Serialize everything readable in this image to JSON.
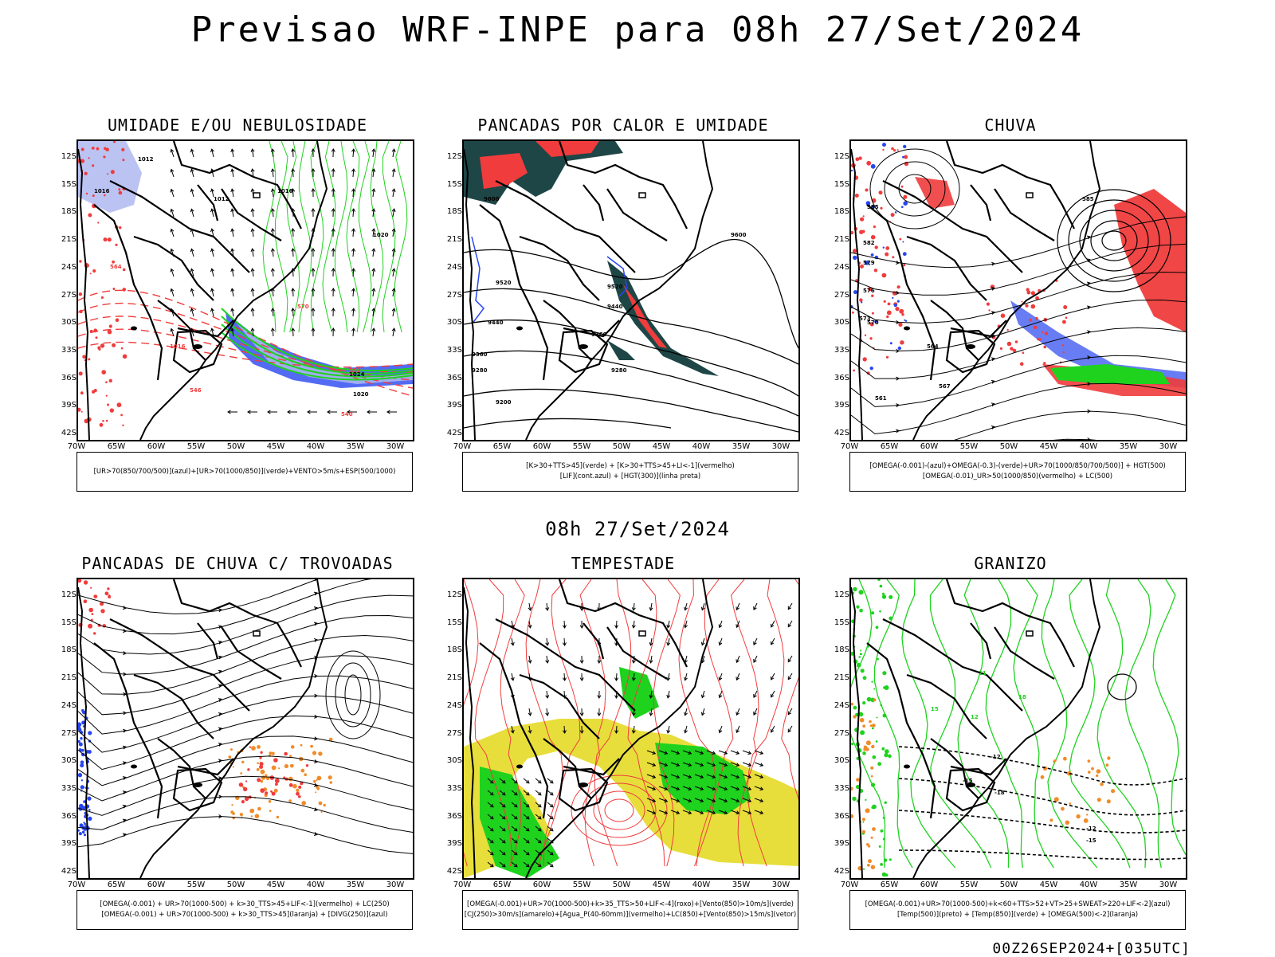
{
  "main_title": "Previsao WRF-INPE  para 08h 27/Set/2024",
  "mid_title": "08h 27/Set/2024",
  "footer": "00Z26SEP2024+[035UTC]",
  "lat_ticks": [
    "12S",
    "15S",
    "18S",
    "21S",
    "24S",
    "27S",
    "30S",
    "33S",
    "36S",
    "39S",
    "42S"
  ],
  "lon_ticks": [
    "70W",
    "65W",
    "60W",
    "55W",
    "50W",
    "45W",
    "40W",
    "35W",
    "30W"
  ],
  "panels": [
    {
      "title": "UMIDADE E/OU NEBULOSIDADE",
      "legend": [
        "[UR>70(850/700/500)](azul)+[UR>70(1000/850)](verde)+VENTO>5m/s+ESP(500/1000)"
      ]
    },
    {
      "title": "PANCADAS POR CALOR E UMIDADE",
      "legend": [
        "[K>30+TTS>45](verde) + [K>30+TTS>45+LI<-1](vermelho)",
        "[LIF](cont.azul) + [HGT(300)](linha preta)"
      ]
    },
    {
      "title": "CHUVA",
      "legend": [
        "[OMEGA(-0.001)-(azul)+OMEGA(-0.3)-(verde)+UR>70(1000/850/700/500)] + HGT(500)",
        "[OMEGA(-0.01)_UR>50(1000/850)(vermelho) + LC(500)"
      ]
    },
    {
      "title": "PANCADAS DE CHUVA C/ TROVOADAS",
      "legend": [
        "[OMEGA(-0.001) + UR>70(1000-500) + k>30_TTS>45+LIF<-1](vermelho) + LC(250)",
        "[OMEGA(-0.001) + UR>70(1000-500) + k>30_TTS>45](laranja) + [DIVG(250)](azul)"
      ]
    },
    {
      "title": "TEMPESTADE",
      "legend": [
        "[OMEGA(-0.001)+UR>70(1000-500)+k>35_TTS>50+LIF<-4](roxo)+[Vento(850)>10m/s](verde)",
        "[CJ(250)>30m/s](amarelo)+[Agua_P(40-60mm)](vermelho)+LC(850)+[Vento(850)>15m/s](vetor)"
      ]
    },
    {
      "title": "GRANIZO",
      "legend": [
        "[OMEGA(-0.001)+UR>70(1000-500)+k<60+TTS>52+VT>25+SWEAT>220+LIF<-2](azul)",
        "[Temp(500)](preto) + [Temp(850)](verde) + [OMEGA(500)<-2](laranja)"
      ]
    }
  ],
  "contour_labels": {
    "p1": [
      "1012",
      "1016",
      "1012",
      "1016",
      "1020",
      "1024",
      "1020",
      "1016",
      "552",
      "570",
      "546",
      "540",
      "564"
    ],
    "p2": [
      "9600",
      "9520",
      "9440",
      "9360",
      "9280",
      "9200",
      "9600",
      "9520",
      "9440",
      "9360",
      "9280"
    ],
    "p3": [
      "585",
      "582",
      "579",
      "576",
      "573",
      "570",
      "567",
      "564",
      "561",
      "585"
    ],
    "p6": [
      "-12",
      "-15",
      "-12",
      "-15",
      "-18",
      "15",
      "12",
      "18",
      "21"
    ]
  },
  "colors": {
    "red": "#f03c3c",
    "green": "#1ed21e",
    "blue": "#2846f0",
    "lavender": "#aab4f0",
    "yellow": "#e6dc32",
    "orange": "#f08c28",
    "teal": "#1e4646",
    "purple": "#a050dc"
  }
}
